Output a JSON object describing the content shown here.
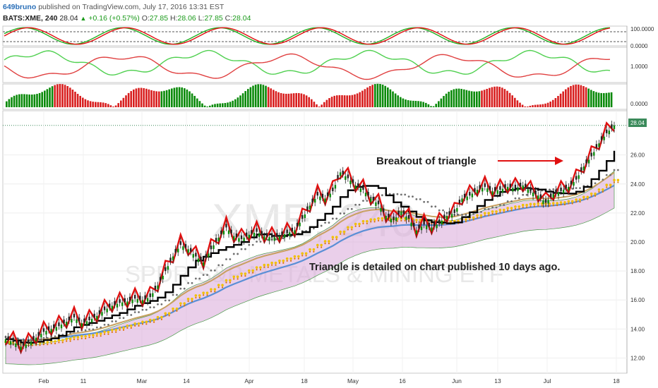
{
  "header": {
    "author": "649bruno",
    "published": "published on TradingView.com, July 17, 2016 13:31 EST",
    "symbol": "BATS:XME, 240",
    "last": "28.04",
    "change": "+0.16 (+0.57%)",
    "open_label": "O:",
    "open": "27.85",
    "high_label": "H:",
    "high": "28.06",
    "low_label": "L:",
    "low": "27.85",
    "close_label": "C:",
    "close": "28.04"
  },
  "watermark": {
    "line1": "XME, 240",
    "line2": "SPDR S&P METALS & MINING ETF"
  },
  "annotations": {
    "breakout": "Breakout of triangle",
    "triangle": "Triangle is detailed on chart published 10 days ago."
  },
  "colors": {
    "up_volume": "#0a8a0a",
    "down_volume": "#d81e1e",
    "black_line": "#000000",
    "red_line": "#e01010",
    "tan_line": "#c8a060",
    "blue_line": "#5a8fd6",
    "yellow_dots": "#f0c000",
    "orange_dots": "#e07000",
    "grey_dots": "#707070",
    "cloud": "#d9a8d9"
  },
  "chart_data": {
    "type": "line",
    "x_labels": [
      "Feb",
      "11",
      "Mar",
      "14",
      "Apr",
      "18",
      "May",
      "16",
      "Jun",
      "13",
      "Jul",
      "18"
    ],
    "y_ticks": [
      "12.00",
      "14.00",
      "16.00",
      "18.00",
      "20.00",
      "22.00",
      "24.00",
      "26.00",
      "28.04"
    ],
    "ylim": [
      11,
      29
    ],
    "price_label": "28.04",
    "close": [
      13.3,
      13.1,
      12.8,
      13.0,
      13.4,
      13.8,
      14.0,
      14.2,
      14.5,
      14.8,
      14.4,
      14.6,
      14.9,
      15.3,
      15.6,
      15.8,
      15.9,
      16.1,
      16.0,
      16.2,
      17.0,
      18.0,
      19.0,
      19.8,
      19.5,
      19.0,
      18.6,
      19.5,
      20.3,
      21.0,
      20.4,
      20.2,
      20.5,
      20.7,
      20.4,
      20.3,
      20.4,
      20.6,
      20.8,
      21.6,
      22.5,
      23.2,
      23.0,
      23.5,
      24.8,
      24.4,
      23.9,
      23.6,
      23.0,
      22.6,
      21.8,
      21.5,
      22.1,
      21.6,
      20.8,
      21.2,
      21.0,
      21.3,
      21.8,
      22.0,
      23.0,
      23.2,
      23.6,
      23.8,
      23.5,
      23.6,
      23.8,
      23.7,
      23.9,
      23.5,
      23.2,
      22.7,
      23.3,
      23.5,
      23.8,
      24.3,
      25.2,
      25.9,
      26.8,
      27.5,
      28.04
    ],
    "indicator1": {
      "ticks": [
        "100.0000",
        "0.0000"
      ]
    },
    "indicator2": {
      "ticks": [
        "1.0000"
      ]
    },
    "indicator3": {
      "ticks": [
        "0.0000"
      ]
    }
  }
}
